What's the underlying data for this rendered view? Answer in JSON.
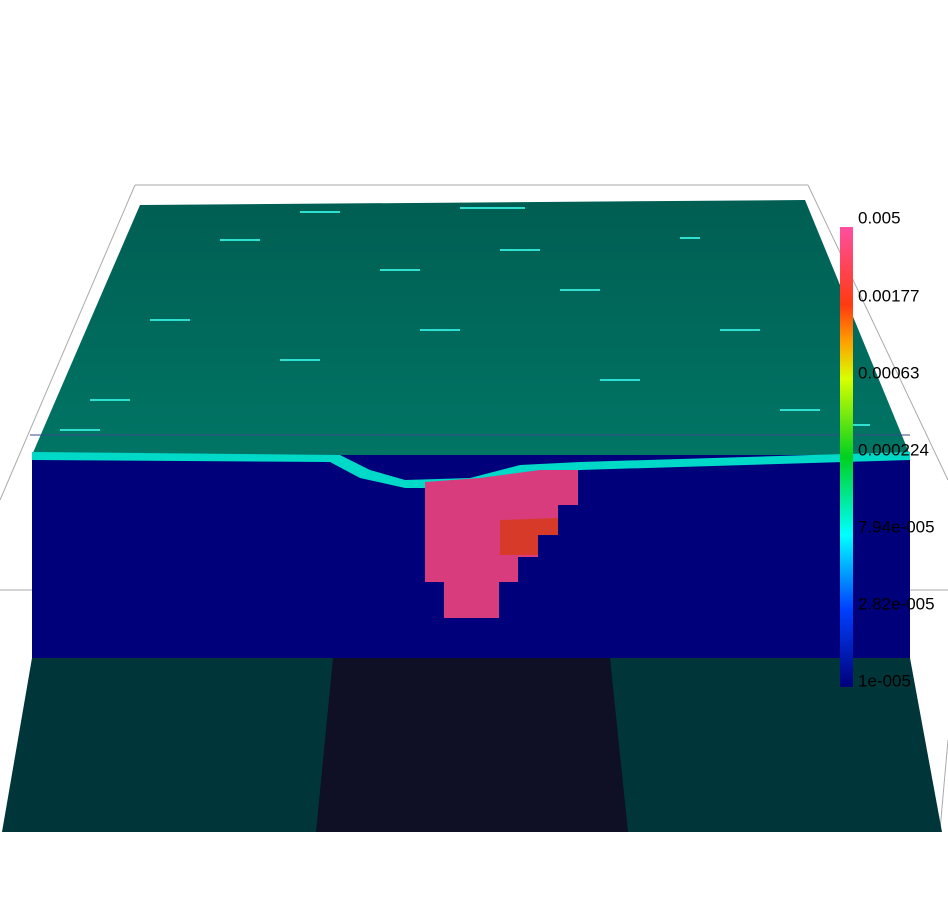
{
  "colorbar": {
    "labels": [
      "0.005",
      "0.00177",
      "0.00063",
      "0.000224",
      "7.94e-005",
      "2.82e-005",
      "1e-005"
    ]
  }
}
